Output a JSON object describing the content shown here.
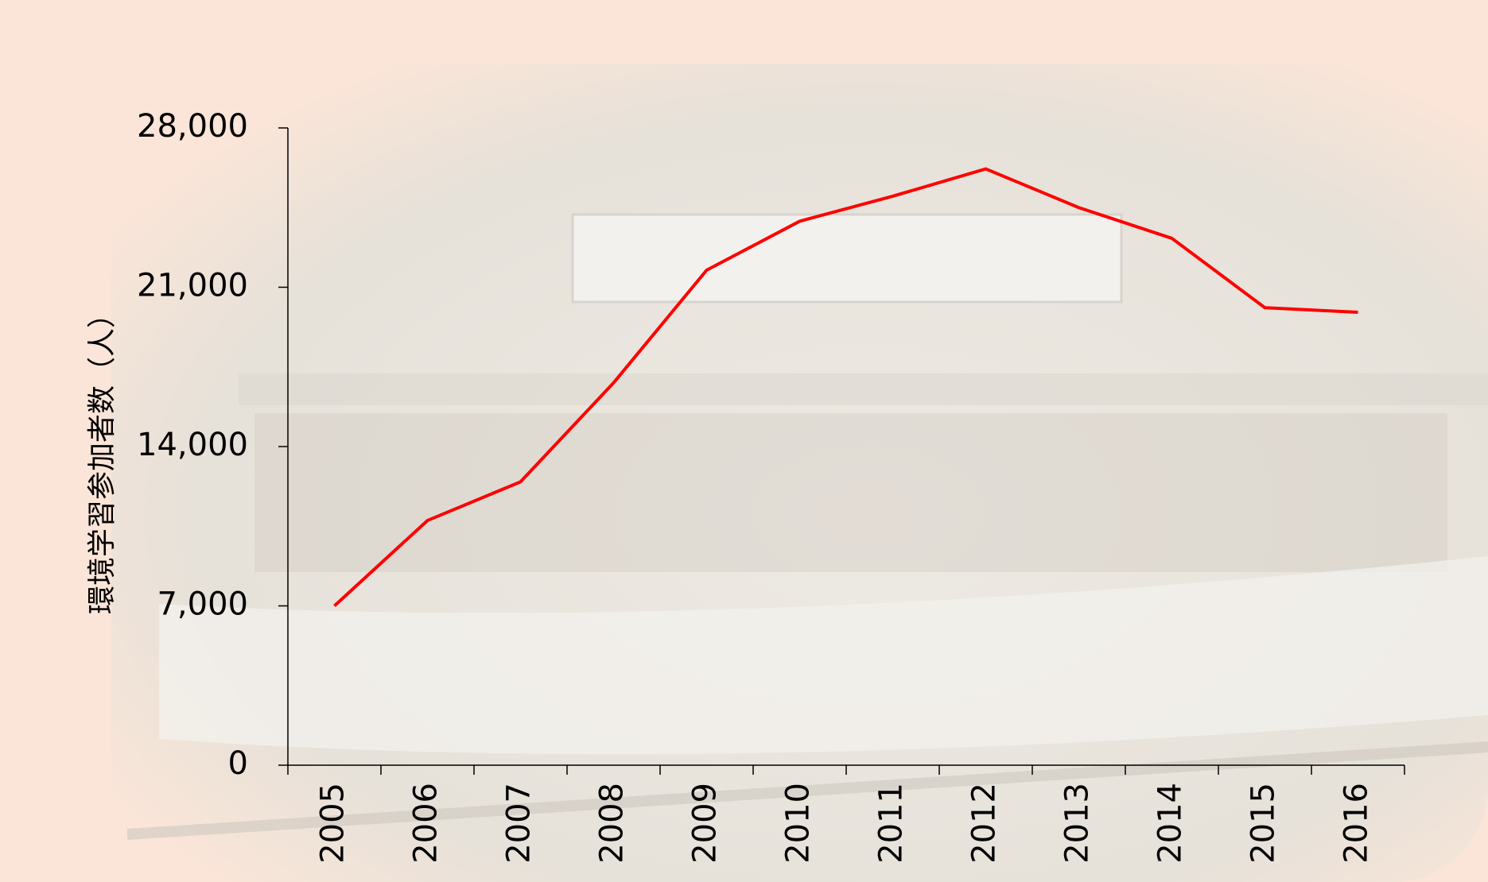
{
  "chart_data": {
    "type": "line",
    "y_label": "環境学習参加者数（人）",
    "categories": [
      "2005",
      "2006",
      "2007",
      "2008",
      "2009",
      "2010",
      "2011",
      "2012",
      "2013",
      "2014",
      "2015",
      "2016"
    ],
    "values": [
      7000,
      10750,
      12450,
      16800,
      21750,
      23900,
      25000,
      26200,
      24500,
      23150,
      20100,
      19900
    ],
    "color": "#ff0000",
    "ylim": [
      0,
      28000
    ],
    "yticks": [
      0,
      {
        "value": 7000,
        "label": "7,000"
      },
      {
        "value": 14000,
        "label": "14,000"
      },
      {
        "value": 21000,
        "label": "21,000"
      },
      {
        "value": 28000,
        "label": "28,000"
      }
    ]
  }
}
